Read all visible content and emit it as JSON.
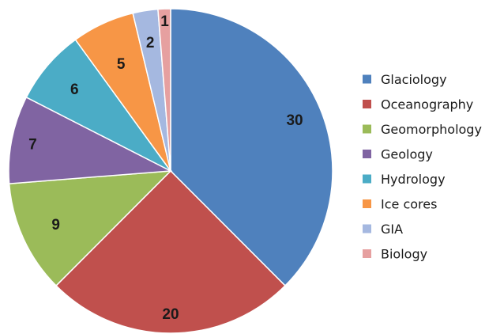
{
  "chart_data": {
    "type": "pie",
    "title": "",
    "start_angle_deg": 0,
    "direction": "clockwise",
    "legend_position": "right",
    "slices": [
      {
        "label": "Glaciology",
        "value": 30,
        "color": "#4f81bd"
      },
      {
        "label": "Oceanography",
        "value": 20,
        "color": "#c0504d"
      },
      {
        "label": "Geomorphology",
        "value": 9,
        "color": "#9bbb59"
      },
      {
        "label": "Geology",
        "value": 7,
        "color": "#8064a2"
      },
      {
        "label": "Hydrology",
        "value": 6,
        "color": "#4bacc6"
      },
      {
        "label": "Ice cores",
        "value": 5,
        "color": "#f79646"
      },
      {
        "label": "GIA",
        "value": 2,
        "color": "#a5b8e0"
      },
      {
        "label": "Biology",
        "value": 1,
        "color": "#e6a0a0"
      }
    ]
  }
}
